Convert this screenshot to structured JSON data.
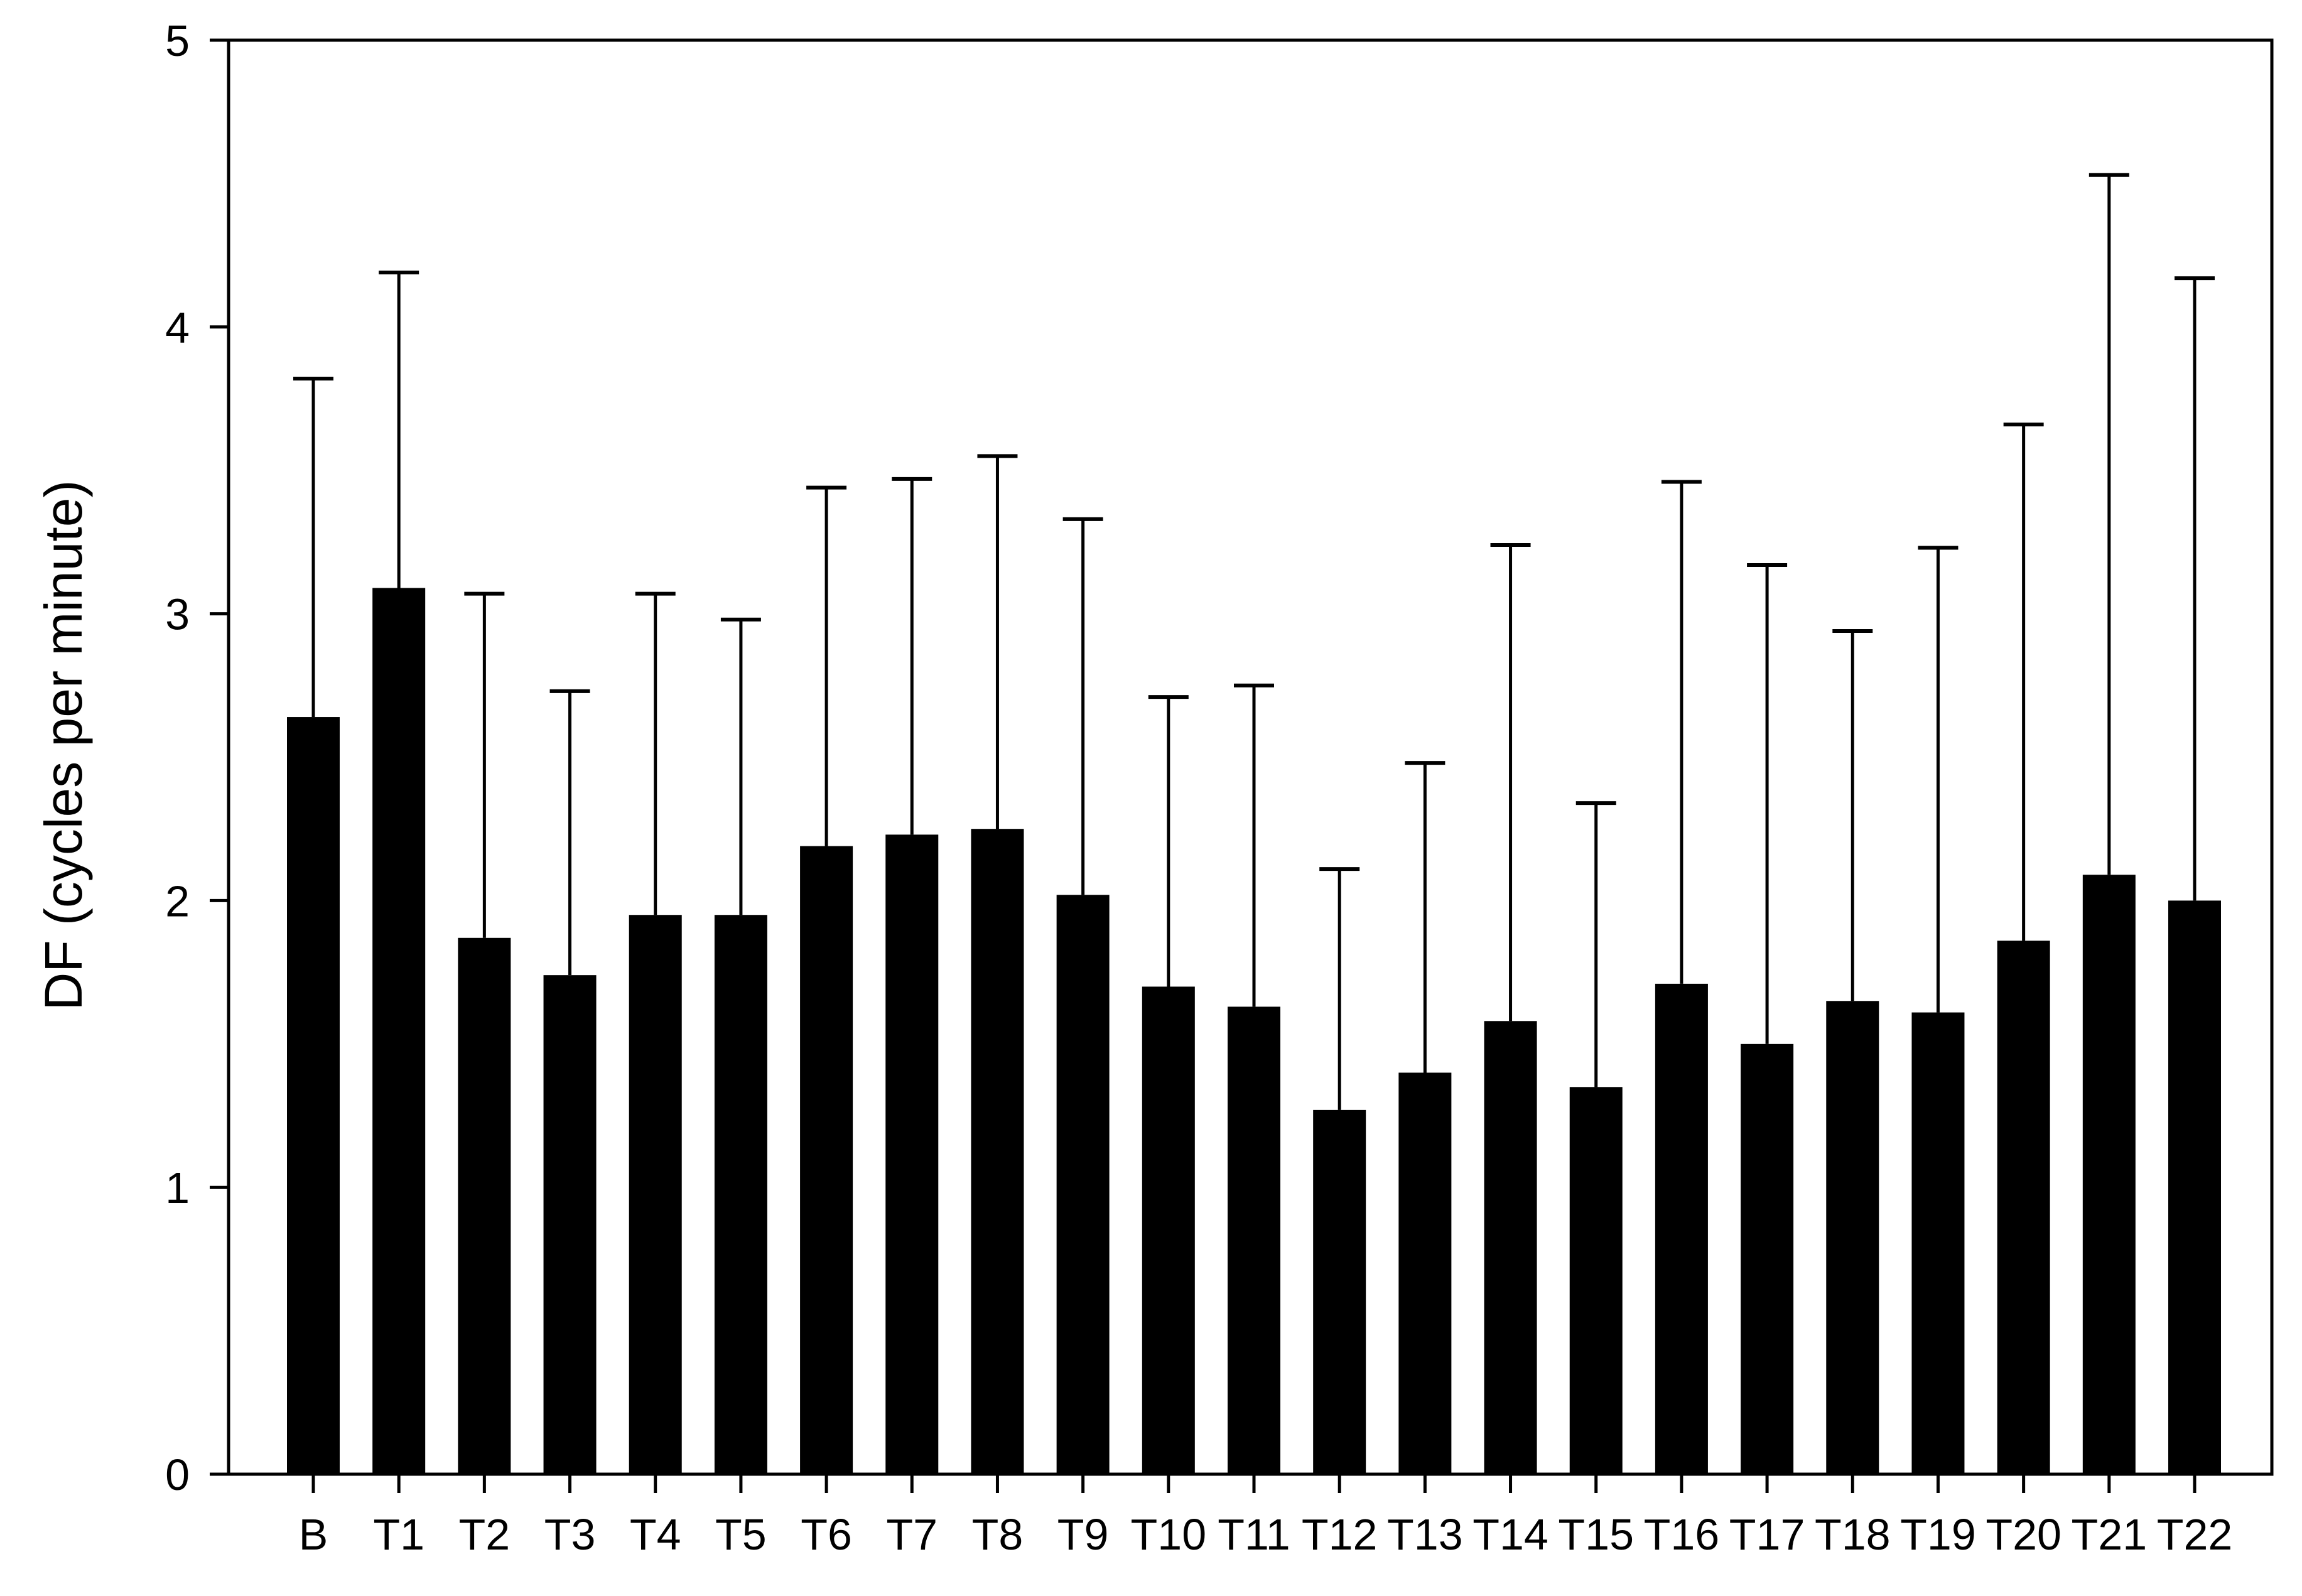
{
  "chart_data": {
    "type": "bar",
    "title": "",
    "xlabel": "",
    "ylabel": "DF (cycles per minute)",
    "ylim": [
      0,
      5
    ],
    "yticks": [
      0,
      1,
      2,
      3,
      4,
      5
    ],
    "categories": [
      "B",
      "T1",
      "T2",
      "T3",
      "T4",
      "T5",
      "T6",
      "T7",
      "T8",
      "T9",
      "T10",
      "T11",
      "T12",
      "T13",
      "T14",
      "T15",
      "T16",
      "T17",
      "T18",
      "T19",
      "T20",
      "T21",
      "T22"
    ],
    "values": [
      2.64,
      3.09,
      1.87,
      1.74,
      1.95,
      1.95,
      2.19,
      2.23,
      2.25,
      2.02,
      1.7,
      1.63,
      1.27,
      1.4,
      1.58,
      1.35,
      1.71,
      1.5,
      1.65,
      1.61,
      1.86,
      2.09,
      2.0
    ],
    "error_upper": [
      3.82,
      4.19,
      3.07,
      2.73,
      3.07,
      2.98,
      3.44,
      3.47,
      3.55,
      3.33,
      2.71,
      2.75,
      2.11,
      2.48,
      3.24,
      2.34,
      3.46,
      3.17,
      2.94,
      3.23,
      3.66,
      4.53,
      4.17
    ],
    "grid": false,
    "legend": "none",
    "colors": {
      "bar": "#000000",
      "axis": "#000000",
      "background": "#ffffff"
    }
  }
}
